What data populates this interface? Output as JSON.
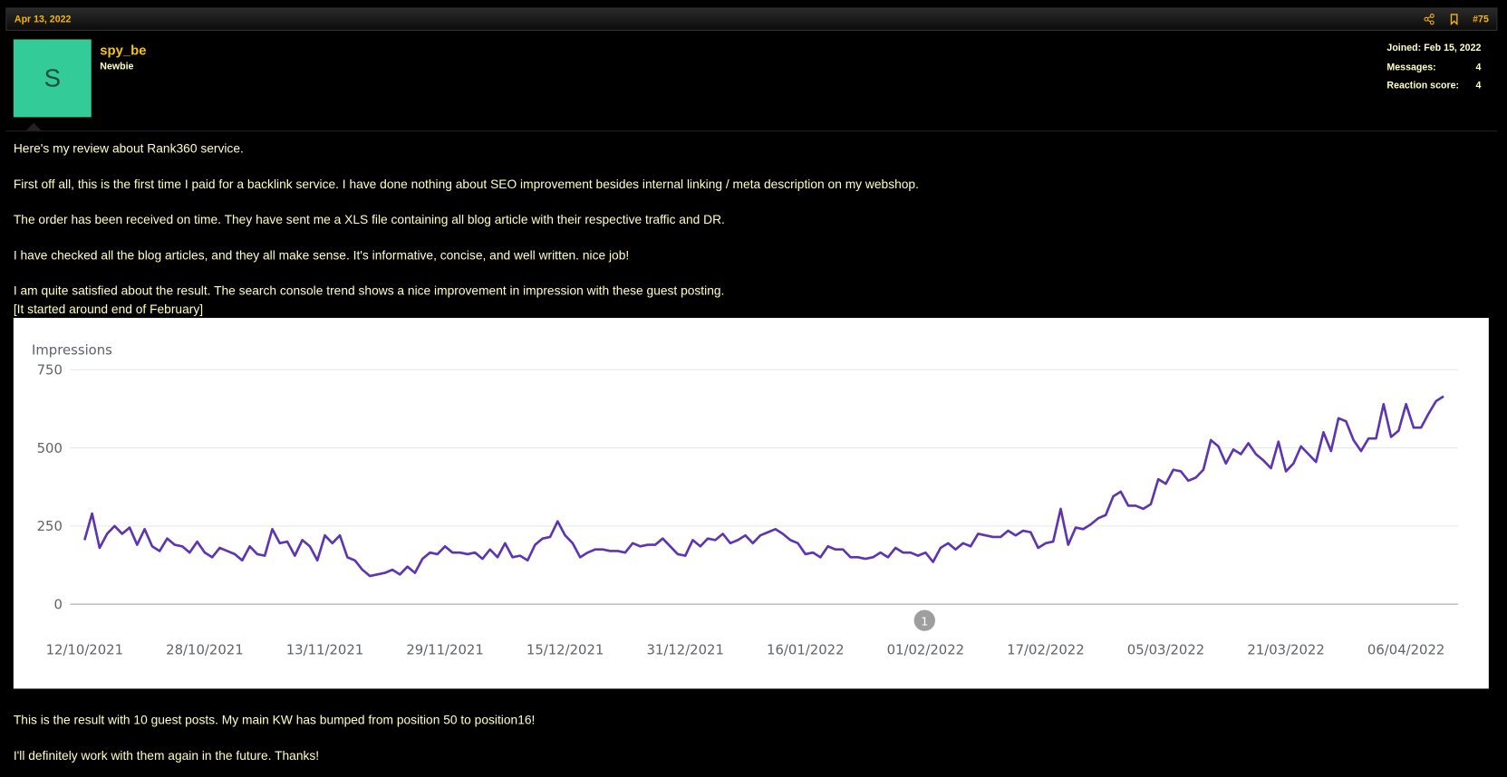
{
  "post": {
    "date": "Apr 13, 2022",
    "number": "#75",
    "username": "spy_be",
    "role": "Newbie",
    "avatar_letter": "S",
    "meta": [
      {
        "label": "Joined:",
        "value": "Feb 15, 2022"
      },
      {
        "label": "Messages:",
        "value": "4"
      },
      {
        "label": "Reaction score:",
        "value": "4"
      }
    ],
    "body_before": [
      "Here's my review about Rank360 service.",
      "First off all, this is the first time I paid for a backlink service. I have done nothing about SEO improvement besides internal linking / meta description on my webshop.",
      "The order has been received on time. They have sent me a XLS file containing all blog article with their respective traffic and DR.",
      "I have checked all the blog articles, and they all make sense. It's informative, concise, and well written. nice job!",
      "I am quite satisfied about the result. The search console trend shows a nice improvement in impression with these guest posting.",
      "[It started around end of February]"
    ],
    "body_after": [
      "This is the result with 10 guest posts. My main KW has bumped from position 50 to position16!",
      "I'll definitely work with them again in the future. Thanks!"
    ]
  },
  "chart_data": {
    "type": "line",
    "y_label": "Impressions",
    "color": "#5e35b1",
    "grid": true,
    "annotation": "1",
    "categories": [
      "12/10/2021",
      null,
      null,
      null,
      null,
      null,
      null,
      null,
      null,
      null,
      null,
      null,
      null,
      null,
      null,
      null,
      "28/10/2021",
      null,
      null,
      null,
      null,
      null,
      null,
      null,
      null,
      null,
      null,
      null,
      null,
      null,
      null,
      null,
      "13/11/2021",
      null,
      null,
      null,
      null,
      null,
      null,
      null,
      null,
      null,
      null,
      null,
      null,
      null,
      null,
      null,
      "29/11/2021",
      null,
      null,
      null,
      null,
      null,
      null,
      null,
      null,
      null,
      null,
      null,
      null,
      null,
      null,
      null,
      "15/12/2021",
      null,
      null,
      null,
      null,
      null,
      null,
      null,
      null,
      null,
      null,
      null,
      null,
      null,
      null,
      null,
      "31/12/2021",
      null,
      null,
      null,
      null,
      null,
      null,
      null,
      null,
      null,
      null,
      null,
      null,
      null,
      null,
      null,
      "16/01/2022",
      null,
      null,
      null,
      null,
      null,
      null,
      null,
      null,
      null,
      null,
      null,
      null,
      null,
      null,
      null,
      "01/02/2022",
      null,
      null,
      null,
      null,
      null,
      null,
      null,
      null,
      null,
      null,
      null,
      null,
      null,
      null,
      null,
      "17/02/2022",
      null,
      null,
      null,
      null,
      null,
      null,
      null,
      null,
      null,
      null,
      null,
      null,
      null,
      null,
      null,
      "05/03/2022",
      null,
      null,
      null,
      null,
      null,
      null,
      null,
      null,
      null,
      null,
      null,
      null,
      null,
      null,
      null,
      "21/03/2022",
      null,
      null,
      null,
      null,
      null,
      null,
      null,
      null,
      null,
      null,
      null,
      null,
      null,
      null,
      null,
      "06/04/2022",
      null,
      null,
      null,
      null,
      null
    ],
    "values": [
      205,
      290,
      180,
      225,
      250,
      225,
      245,
      190,
      240,
      185,
      170,
      210,
      190,
      185,
      165,
      200,
      165,
      150,
      180,
      170,
      160,
      140,
      185,
      160,
      155,
      240,
      195,
      200,
      155,
      205,
      185,
      140,
      220,
      195,
      220,
      150,
      140,
      110,
      90,
      95,
      100,
      110,
      95,
      120,
      100,
      145,
      165,
      160,
      185,
      165,
      165,
      160,
      165,
      145,
      175,
      150,
      195,
      150,
      155,
      140,
      190,
      210,
      215,
      265,
      220,
      195,
      150,
      165,
      175,
      175,
      170,
      170,
      165,
      195,
      185,
      190,
      190,
      210,
      185,
      160,
      155,
      205,
      185,
      210,
      205,
      225,
      195,
      205,
      220,
      195,
      220,
      230,
      240,
      225,
      205,
      195,
      160,
      165,
      150,
      185,
      175,
      175,
      150,
      150,
      145,
      150,
      165,
      150,
      180,
      165,
      165,
      155,
      165,
      135,
      180,
      195,
      175,
      195,
      185,
      225,
      220,
      215,
      215,
      235,
      220,
      235,
      230,
      180,
      195,
      200,
      305,
      190,
      245,
      240,
      255,
      275,
      285,
      345,
      360,
      315,
      315,
      305,
      320,
      400,
      385,
      430,
      425,
      395,
      405,
      430,
      525,
      505,
      450,
      495,
      480,
      515,
      480,
      460,
      435,
      520,
      425,
      450,
      505,
      480,
      455,
      550,
      490,
      595,
      585,
      525,
      490,
      530,
      530,
      640,
      535,
      555,
      640,
      565,
      565,
      610,
      650,
      665
    ],
    "ylim": [
      0,
      750
    ],
    "yticks": [
      0,
      250,
      500,
      750
    ]
  }
}
